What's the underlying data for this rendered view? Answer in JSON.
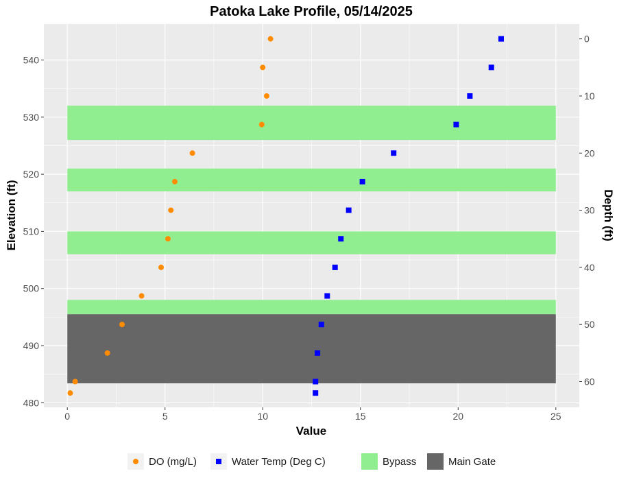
{
  "chart_data": {
    "type": "scatter",
    "title": "Patoka Lake Profile,  05/14/2025",
    "xlabel": "Value",
    "ylabel": "Elevation (ft)",
    "y2label": "Depth (ft)",
    "xlim": [
      -1.2,
      26.2
    ],
    "ylim": [
      479.2,
      546.3
    ],
    "x_ticks": [
      0,
      5,
      10,
      15,
      20,
      25
    ],
    "y_ticks": [
      480,
      490,
      500,
      510,
      520,
      530,
      540
    ],
    "depth_ticks": [
      0,
      10,
      20,
      30,
      40,
      50,
      60
    ],
    "surface_elevation": 543.7,
    "grid": true,
    "legend_position": "bottom",
    "colors": {
      "panel": "#ebebeb",
      "grid_major": "#ffffff",
      "do": "#ff8c00",
      "temp": "#0000ff",
      "bypass": "#90ee90",
      "main_gate": "#666666"
    },
    "bands": [
      {
        "name": "Bypass",
        "ymin": 526,
        "ymax": 532
      },
      {
        "name": "Bypass",
        "ymin": 517,
        "ymax": 521
      },
      {
        "name": "Bypass",
        "ymin": 506,
        "ymax": 510
      },
      {
        "name": "Bypass",
        "ymin": 495.5,
        "ymax": 498
      },
      {
        "name": "Main Gate",
        "ymin": 483.4,
        "ymax": 495.5
      }
    ],
    "series": [
      {
        "name": "DO (mg/L)",
        "marker": "circle",
        "points": [
          {
            "x": 10.4,
            "y": 543.7
          },
          {
            "x": 10.0,
            "y": 538.7
          },
          {
            "x": 10.2,
            "y": 533.7
          },
          {
            "x": 9.95,
            "y": 528.7
          },
          {
            "x": 6.4,
            "y": 523.7
          },
          {
            "x": 5.5,
            "y": 518.7
          },
          {
            "x": 5.3,
            "y": 513.7
          },
          {
            "x": 5.15,
            "y": 508.7
          },
          {
            "x": 4.8,
            "y": 503.7
          },
          {
            "x": 3.8,
            "y": 498.7
          },
          {
            "x": 2.8,
            "y": 493.7
          },
          {
            "x": 2.05,
            "y": 488.7
          },
          {
            "x": 0.4,
            "y": 483.7
          },
          {
            "x": 0.15,
            "y": 481.7
          }
        ]
      },
      {
        "name": "Water Temp (Deg C)",
        "marker": "square",
        "points": [
          {
            "x": 22.2,
            "y": 543.7
          },
          {
            "x": 21.7,
            "y": 538.7
          },
          {
            "x": 20.6,
            "y": 533.7
          },
          {
            "x": 19.9,
            "y": 528.7
          },
          {
            "x": 16.7,
            "y": 523.7
          },
          {
            "x": 15.1,
            "y": 518.7
          },
          {
            "x": 14.4,
            "y": 513.7
          },
          {
            "x": 14.0,
            "y": 508.7
          },
          {
            "x": 13.7,
            "y": 503.7
          },
          {
            "x": 13.3,
            "y": 498.7
          },
          {
            "x": 13.0,
            "y": 493.7
          },
          {
            "x": 12.8,
            "y": 488.7
          },
          {
            "x": 12.7,
            "y": 483.7
          },
          {
            "x": 12.7,
            "y": 481.7
          }
        ]
      }
    ],
    "legend": [
      {
        "label": "DO (mg/L)",
        "kind": "circle",
        "color": "#ff8c00"
      },
      {
        "label": "Water Temp (Deg C)",
        "kind": "square",
        "color": "#0000ff"
      },
      {
        "label": "Bypass",
        "kind": "fill",
        "color": "#90ee90"
      },
      {
        "label": "Main Gate",
        "kind": "fill",
        "color": "#666666"
      }
    ]
  }
}
